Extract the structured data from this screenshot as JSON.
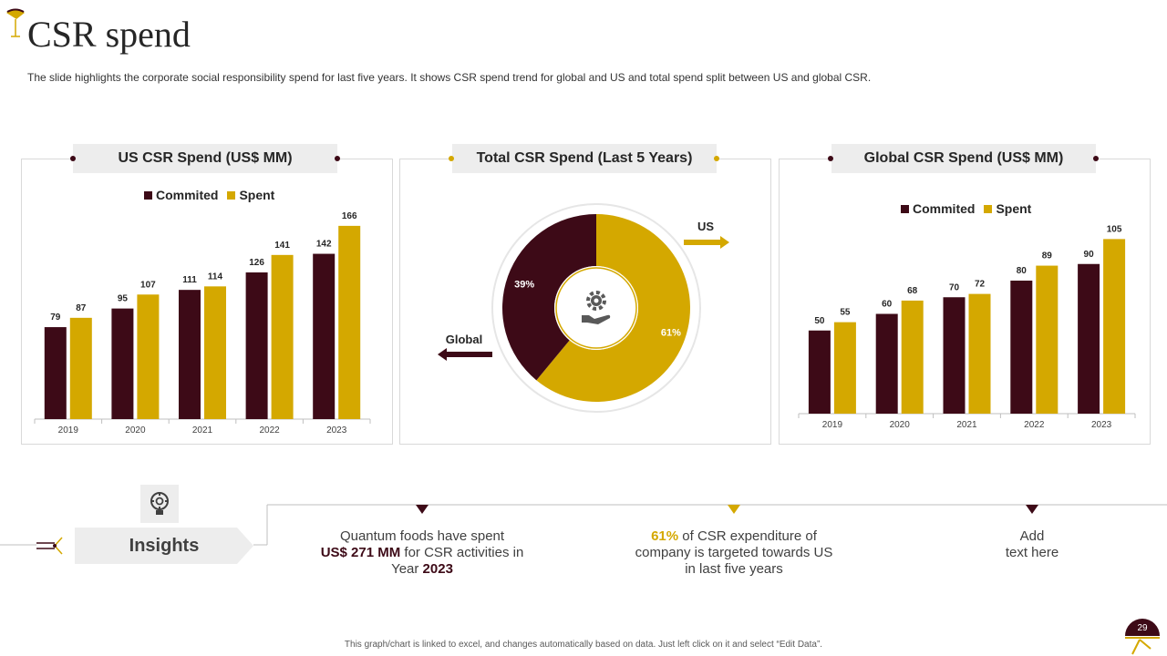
{
  "page": {
    "title": "CSR spend",
    "subtitle": "The slide highlights the corporate social responsibility spend for last five years. It shows CSR spend trend for global and US and total spend split between US and global CSR.",
    "footer_note": "This graph/chart is linked to excel, and changes automatically based on data. Just left click on it and select “Edit Data”.",
    "page_number": "29"
  },
  "colors": {
    "committed": "#3d0a17",
    "spent": "#d4a800",
    "panel_border": "#d9d9d9",
    "header_bg": "#ededed"
  },
  "panels": {
    "us": {
      "title": "US CSR Spend (US$ MM)"
    },
    "total": {
      "title": "Total CSR Spend (Last 5 Years)"
    },
    "global": {
      "title": "Global CSR Spend (US$ MM)"
    }
  },
  "insights": {
    "label": "Insights",
    "item1": {
      "pre": "Quantum foods have spent",
      "amount": "US$ 271 MM",
      "mid": " for CSR activities in",
      "year_pre": "Year ",
      "year": "2023"
    },
    "item2": {
      "pct": "61%",
      "rest1": " of CSR expenditure of",
      "rest2": "company is targeted towards US",
      "rest3": "in last five years"
    },
    "item3": {
      "line1": "Add",
      "line2": "text here"
    }
  },
  "chart_data": [
    {
      "id": "us",
      "type": "bar",
      "title": "US CSR Spend (US$ MM)",
      "categories": [
        "2019",
        "2020",
        "2021",
        "2022",
        "2023"
      ],
      "series": [
        {
          "name": "Commited",
          "values": [
            79,
            95,
            111,
            126,
            142
          ]
        },
        {
          "name": "Spent",
          "values": [
            87,
            107,
            114,
            141,
            166
          ]
        }
      ],
      "ylim": [
        0,
        180
      ],
      "legend": "top"
    },
    {
      "id": "total",
      "type": "pie",
      "title": "Total CSR Spend (Last 5 Years)",
      "slices": [
        {
          "name": "US",
          "value": 61,
          "label": "61%"
        },
        {
          "name": "Global",
          "value": 39,
          "label": "39%"
        }
      ],
      "annotations": [
        "US",
        "Global"
      ]
    },
    {
      "id": "global",
      "type": "bar",
      "title": "Global CSR Spend (US$ MM)",
      "categories": [
        "2019",
        "2020",
        "2021",
        "2022",
        "2023"
      ],
      "series": [
        {
          "name": "Commited",
          "values": [
            50,
            60,
            70,
            80,
            90
          ]
        },
        {
          "name": "Spent",
          "values": [
            55,
            68,
            72,
            89,
            105
          ]
        }
      ],
      "ylim": [
        0,
        120
      ],
      "legend": "top"
    }
  ]
}
